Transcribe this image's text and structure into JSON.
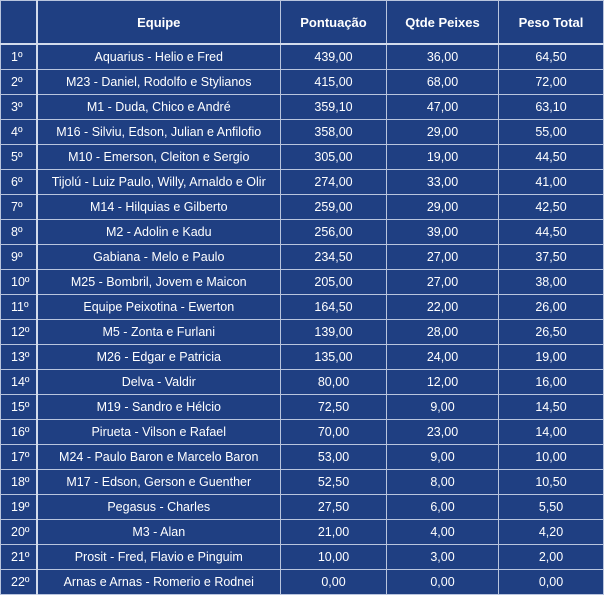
{
  "headers": {
    "rank": "",
    "team": "Equipe",
    "points": "Pontuação",
    "fish_count": "Qtde Peixes",
    "total_weight": "Peso Total"
  },
  "rows": [
    {
      "rank": "1º",
      "team": "Aquarius - Helio e Fred",
      "points": "439,00",
      "fish_count": "36,00",
      "total_weight": "64,50"
    },
    {
      "rank": "2º",
      "team": "M23 - Daniel, Rodolfo e Stylianos",
      "points": "415,00",
      "fish_count": "68,00",
      "total_weight": "72,00"
    },
    {
      "rank": "3º",
      "team": "M1 - Duda, Chico e André",
      "points": "359,10",
      "fish_count": "47,00",
      "total_weight": "63,10"
    },
    {
      "rank": "4º",
      "team": "M16 - Silviu, Edson, Julian e Anfilofio",
      "points": "358,00",
      "fish_count": "29,00",
      "total_weight": "55,00"
    },
    {
      "rank": "5º",
      "team": "M10 - Emerson, Cleiton e Sergio",
      "points": "305,00",
      "fish_count": "19,00",
      "total_weight": "44,50"
    },
    {
      "rank": "6º",
      "team": "Tijolú - Luiz Paulo, Willy, Arnaldo e Olir",
      "points": "274,00",
      "fish_count": "33,00",
      "total_weight": "41,00"
    },
    {
      "rank": "7º",
      "team": "M14 - Hilquias e Gilberto",
      "points": "259,00",
      "fish_count": "29,00",
      "total_weight": "42,50"
    },
    {
      "rank": "8º",
      "team": "M2 - Adolin e Kadu",
      "points": "256,00",
      "fish_count": "39,00",
      "total_weight": "44,50"
    },
    {
      "rank": "9º",
      "team": "Gabiana - Melo e Paulo",
      "points": "234,50",
      "fish_count": "27,00",
      "total_weight": "37,50"
    },
    {
      "rank": "10º",
      "team": "M25 - Bombril, Jovem e Maicon",
      "points": "205,00",
      "fish_count": "27,00",
      "total_weight": "38,00"
    },
    {
      "rank": "11º",
      "team": "Equipe Peixotina - Ewerton",
      "points": "164,50",
      "fish_count": "22,00",
      "total_weight": "26,00"
    },
    {
      "rank": "12º",
      "team": "M5 - Zonta e Furlani",
      "points": "139,00",
      "fish_count": "28,00",
      "total_weight": "26,50"
    },
    {
      "rank": "13º",
      "team": "M26 - Edgar e Patricia",
      "points": "135,00",
      "fish_count": "24,00",
      "total_weight": "19,00"
    },
    {
      "rank": "14º",
      "team": "Delva - Valdir",
      "points": "80,00",
      "fish_count": "12,00",
      "total_weight": "16,00"
    },
    {
      "rank": "15º",
      "team": "M19 - Sandro e Hélcio",
      "points": "72,50",
      "fish_count": "9,00",
      "total_weight": "14,50"
    },
    {
      "rank": "16º",
      "team": "Pirueta - Vilson e Rafael",
      "points": "70,00",
      "fish_count": "23,00",
      "total_weight": "14,00"
    },
    {
      "rank": "17º",
      "team": "M24 - Paulo Baron e Marcelo Baron",
      "points": "53,00",
      "fish_count": "9,00",
      "total_weight": "10,00"
    },
    {
      "rank": "18º",
      "team": "M17 - Edson, Gerson e Guenther",
      "points": "52,50",
      "fish_count": "8,00",
      "total_weight": "10,50"
    },
    {
      "rank": "19º",
      "team": "Pegasus - Charles",
      "points": "27,50",
      "fish_count": "6,00",
      "total_weight": "5,50"
    },
    {
      "rank": "20º",
      "team": "M3 - Alan",
      "points": "21,00",
      "fish_count": "4,00",
      "total_weight": "4,20"
    },
    {
      "rank": "21º",
      "team": "Prosit - Fred, Flavio e Pinguim",
      "points": "10,00",
      "fish_count": "3,00",
      "total_weight": "2,00"
    },
    {
      "rank": "22º",
      "team": "Arnas e Arnas - Romerio e Rodnei",
      "points": "0,00",
      "fish_count": "0,00",
      "total_weight": "0,00"
    }
  ]
}
